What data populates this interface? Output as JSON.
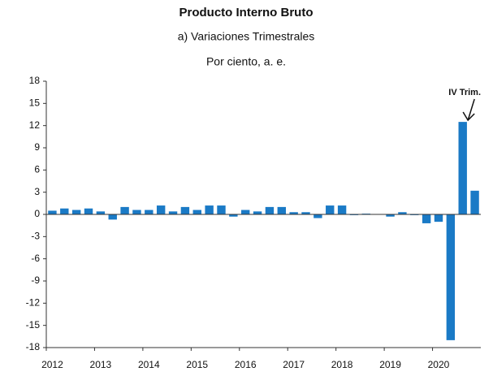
{
  "chart_data": {
    "type": "bar",
    "title": "Producto Interno Bruto",
    "subtitle": "a) Variaciones Trimestrales",
    "unit_label": "Por ciento, a. e.",
    "annotation": "IV Trim.",
    "categories": [
      "2012",
      null,
      null,
      null,
      "2013",
      null,
      null,
      null,
      "2014",
      null,
      null,
      null,
      "2015",
      null,
      null,
      null,
      "2016",
      null,
      null,
      null,
      "2017",
      null,
      null,
      null,
      "2018",
      null,
      null,
      null,
      "2019",
      null,
      null,
      null,
      "2020",
      null,
      null,
      null
    ],
    "values": [
      0.5,
      0.8,
      0.6,
      0.8,
      0.4,
      -0.7,
      1.0,
      0.6,
      0.6,
      1.2,
      0.4,
      1.0,
      0.6,
      1.2,
      1.2,
      -0.3,
      0.6,
      0.4,
      1.0,
      1.0,
      0.3,
      0.3,
      -0.5,
      1.2,
      1.2,
      -0.1,
      0.1,
      0.0,
      -0.3,
      0.3,
      -0.1,
      -1.2,
      -1.0,
      -17.0,
      12.5,
      3.2
    ],
    "color": "#1a7ac6",
    "ylim": [
      -18,
      18
    ],
    "yticks": [
      -18,
      -15,
      -12,
      -9,
      -6,
      -3,
      0,
      3,
      6,
      9,
      12,
      15,
      18
    ],
    "grid": false
  }
}
